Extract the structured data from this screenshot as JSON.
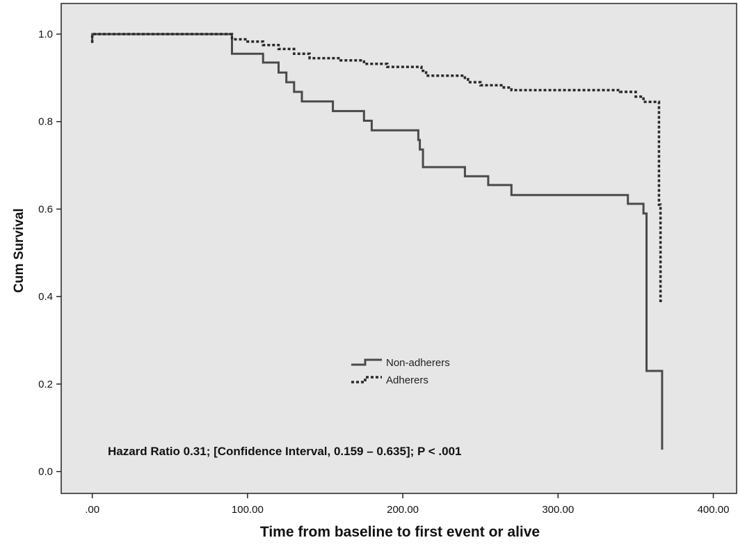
{
  "chart_data": {
    "type": "line",
    "step": true,
    "xlabel": "Time from baseline to first event or alive",
    "ylabel": "Cum Survival",
    "xlim": [
      -20,
      415
    ],
    "ylim": [
      -0.05,
      1.07
    ],
    "xticks": [
      0,
      100,
      200,
      300,
      400
    ],
    "xtick_labels": [
      ".00",
      "100.00",
      "200.00",
      "300.00",
      "400.00"
    ],
    "yticks": [
      0.0,
      0.2,
      0.4,
      0.6,
      0.8,
      1.0
    ],
    "ytick_labels": [
      "0.0",
      "0.2",
      "0.4",
      "0.6",
      "0.8",
      "1.0"
    ],
    "grid": false,
    "background_color": "#e6e6e6",
    "legend_position": "center",
    "annotation": "Hazard Ratio 0.31; [Confidence Interval, 0.159 – 0.635]; P < .001",
    "series": [
      {
        "name": "Non-adherers",
        "style": "solid",
        "color": "#4a4a4a",
        "x": [
          0,
          0,
          90,
          90,
          110,
          110,
          120,
          120,
          125,
          125,
          130,
          130,
          135,
          135,
          155,
          155,
          175,
          175,
          180,
          180,
          210,
          210,
          211,
          211,
          213,
          213,
          240,
          240,
          255,
          255,
          270,
          270,
          345,
          345,
          355,
          355,
          357,
          357,
          367,
          367,
          367,
          367
        ],
        "y": [
          0.98,
          1.0,
          1.0,
          0.955,
          0.955,
          0.935,
          0.935,
          0.912,
          0.912,
          0.89,
          0.89,
          0.868,
          0.868,
          0.846,
          0.846,
          0.824,
          0.824,
          0.802,
          0.802,
          0.78,
          0.78,
          0.758,
          0.758,
          0.736,
          0.736,
          0.696,
          0.696,
          0.675,
          0.675,
          0.655,
          0.655,
          0.632,
          0.632,
          0.612,
          0.612,
          0.59,
          0.59,
          0.23,
          0.23,
          0.05,
          0.05,
          0.23
        ]
      },
      {
        "name": "Adherers",
        "style": "dashed",
        "color": "#2a2a2a",
        "x": [
          0,
          0,
          90,
          90,
          100,
          100,
          110,
          110,
          120,
          120,
          130,
          130,
          140,
          140,
          160,
          160,
          175,
          175,
          190,
          190,
          212,
          212,
          215,
          215,
          240,
          240,
          242,
          242,
          250,
          250,
          265,
          265,
          270,
          270,
          340,
          340,
          350,
          350,
          355,
          355,
          365,
          365,
          366,
          366,
          368
        ],
        "y": [
          0.98,
          1.0,
          1.0,
          0.988,
          0.988,
          0.983,
          0.983,
          0.975,
          0.975,
          0.966,
          0.966,
          0.955,
          0.955,
          0.945,
          0.945,
          0.94,
          0.94,
          0.932,
          0.932,
          0.925,
          0.925,
          0.916,
          0.916,
          0.905,
          0.905,
          0.897,
          0.897,
          0.89,
          0.89,
          0.883,
          0.883,
          0.878,
          0.878,
          0.872,
          0.872,
          0.868,
          0.868,
          0.857,
          0.857,
          0.845,
          0.845,
          0.61,
          0.61,
          0.39,
          0.39
        ]
      }
    ]
  }
}
